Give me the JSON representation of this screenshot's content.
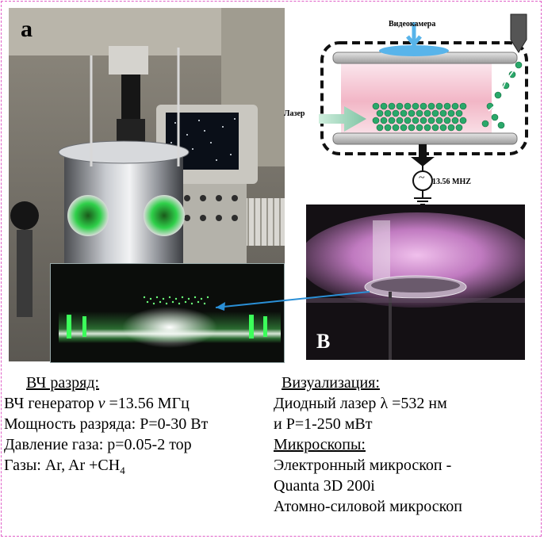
{
  "panel_a": {
    "label": "a"
  },
  "panel_b": {
    "label": "B"
  },
  "schematic": {
    "camera_label": "Видеокамера",
    "laser_label": "Лазер",
    "freq_label": "13.56 MHZ",
    "source_symbol": "~"
  },
  "left_text": {
    "heading": "ВЧ разряд:",
    "line1_prefix": "ВЧ генератор ",
    "line1_symbol": "ν",
    "line1_value": " =13.56 МГц",
    "line2": "Мощность разряда: Р=0-30 Вт",
    "line3": "Давление газа: p=0.05-2 тор",
    "line4_prefix": "Газы: Ar, Ar +CH",
    "line4_sub": "4"
  },
  "right_text": {
    "heading": "Визуализация:",
    "line1_prefix": "Диодный лазер ",
    "line1_symbol": "λ",
    "line1_value": " =532 нм",
    "line2": "и Р=1-250 мВт",
    "heading2": "Микроскопы:",
    "line3": "Электронный микроскоп -",
    "line4": "Quanta 3D 200i",
    "line5": "Атомно-силовой микроскоп"
  },
  "colors": {
    "laser_green": "#3cff5a",
    "arrow_blue": "#2a8fd6",
    "plasma_pink": "#d58ad0",
    "border_pink": "#e060c8"
  }
}
